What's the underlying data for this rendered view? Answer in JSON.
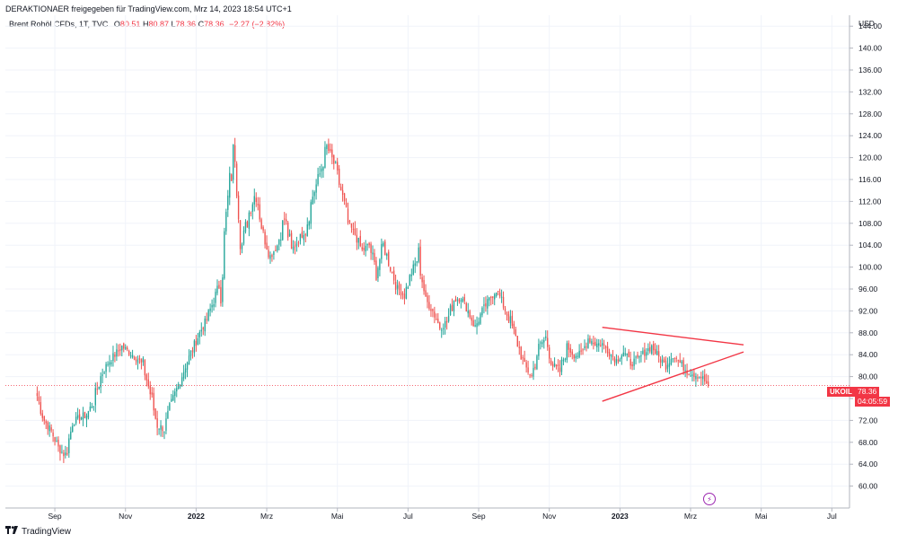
{
  "header": {
    "shared_by": "DERAKTIONAER freigegeben für TradingView.com, Mrz 14, 2023 18:54 UTC+1"
  },
  "legend": {
    "symbol": "Brent Rohöl CFDs, 1T, TVC",
    "open_label": "O",
    "open": "80.51",
    "high_label": "H",
    "high": "80.87",
    "low_label": "L",
    "low": "78.36",
    "close_label": "C",
    "close": "78.36",
    "change": "−2.27 (−2.82%)"
  },
  "currency": "USD",
  "price_label": {
    "symbol": "UKOIL",
    "price": "78.36",
    "countdown": "04:05:59"
  },
  "footer": {
    "brand": "TradingView"
  },
  "icons": {
    "alert": "lightning-bolt-icon",
    "logo": "tradingview-logo-icon"
  },
  "colors": {
    "up": "#26a69a",
    "down": "#ef5350",
    "trendline": "#f23645",
    "price_line": "#f23645"
  },
  "chart_data": {
    "type": "line",
    "style": "candlestick",
    "ylim": [
      56,
      146
    ],
    "y_ticks": [
      "60.00",
      "64.00",
      "68.00",
      "72.00",
      "76.00",
      "80.00",
      "84.00",
      "88.00",
      "92.00",
      "96.00",
      "100.00",
      "104.00",
      "108.00",
      "112.00",
      "116.00",
      "120.00",
      "124.00",
      "128.00",
      "132.00",
      "136.00",
      "140.00",
      "144.00"
    ],
    "x_ticks": [
      "Sep",
      "Nov",
      "2022",
      "Mrz",
      "Mai",
      "Jul",
      "Sep",
      "Nov",
      "2023",
      "Mrz",
      "Mai",
      "Jul"
    ],
    "x_tick_pos": [
      0.5,
      2.5,
      4.5,
      6.5,
      8.5,
      10.5,
      12.5,
      14.5,
      16.5,
      18.5,
      20.5,
      22.5
    ],
    "xlim": [
      -0.9,
      23.0
    ],
    "x_unit": "months since 2021-08-15",
    "series": [
      {
        "x": [
          0.0,
          0.2,
          0.4,
          0.6,
          0.8,
          1.0,
          1.2,
          1.4,
          1.6,
          1.8,
          2.0,
          2.2,
          2.4,
          2.6,
          2.8,
          3.0,
          3.2,
          3.4,
          3.6,
          3.8,
          4.0,
          4.2,
          4.4,
          4.6,
          4.8,
          5.0,
          5.2,
          5.4,
          5.6,
          5.8,
          6.0,
          6.2,
          6.4,
          6.6,
          6.8,
          7.0,
          7.2,
          7.4,
          7.6,
          7.8,
          8.0,
          8.2,
          8.4,
          8.6,
          8.8,
          9.0,
          9.2,
          9.4,
          9.6,
          9.8,
          10.0,
          10.2,
          10.4,
          10.6,
          10.8,
          11.0,
          11.2,
          11.4,
          11.6,
          11.8,
          12.0,
          12.2,
          12.4,
          12.6,
          12.8,
          13.0,
          13.2,
          13.4,
          13.6,
          13.8,
          14.0,
          14.2,
          14.4,
          14.6,
          14.8,
          15.0,
          15.2,
          15.4,
          15.6,
          15.8,
          16.0,
          16.2,
          16.4,
          16.6,
          16.8,
          17.0,
          17.2,
          17.4,
          17.6,
          17.8,
          18.0,
          18.2,
          18.4,
          18.6,
          18.8,
          19.0
        ],
        "y": [
          76.5,
          72.0,
          70.0,
          67.0,
          65.5,
          71.5,
          72.5,
          73.0,
          75.5,
          80.0,
          82.5,
          84.0,
          85.5,
          84.5,
          83.5,
          82.0,
          77.0,
          71.0,
          70.5,
          75.0,
          78.5,
          82.0,
          85.0,
          88.0,
          90.5,
          94.0,
          97.5,
          112.0,
          123.0,
          104.0,
          110.0,
          114.0,
          106.0,
          102.0,
          104.0,
          109.0,
          103.0,
          105.0,
          107.0,
          113.0,
          117.0,
          122.0,
          119.0,
          114.0,
          108.0,
          106.0,
          103.0,
          104.0,
          99.0,
          104.0,
          100.0,
          96.0,
          95.0,
          99.0,
          102.0,
          94.0,
          92.0,
          89.0,
          90.0,
          94.0,
          94.5,
          92.0,
          89.0,
          92.0,
          94.0,
          96.0,
          93.0,
          90.0,
          86.0,
          82.0,
          80.0,
          85.5,
          87.0,
          82.0,
          81.0,
          85.5,
          84.0,
          84.0,
          87.0,
          86.0,
          86.0,
          84.5,
          83.0,
          84.5,
          82.5,
          83.0,
          84.5,
          85.5,
          83.5,
          82.0,
          84.0,
          82.5,
          81.0,
          80.5,
          80.0,
          78.36
        ]
      }
    ],
    "trendlines": [
      {
        "name": "upper",
        "from": [
          16.0,
          89.0
        ],
        "to": [
          20.0,
          85.8
        ]
      },
      {
        "name": "lower",
        "from": [
          16.0,
          75.5
        ],
        "to": [
          20.0,
          84.5
        ]
      }
    ],
    "last_price": 78.36
  }
}
